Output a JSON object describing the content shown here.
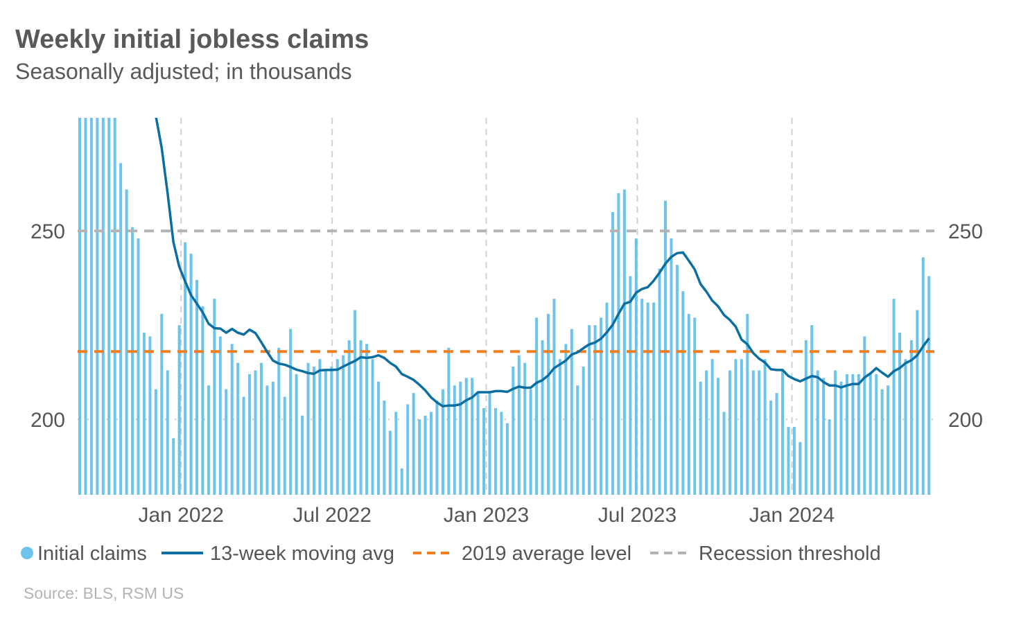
{
  "chart_data": {
    "type": "bar",
    "title": "Weekly initial jobless claims",
    "subtitle": "Seasonally adjusted; in thousands",
    "source": "Source: BLS, RSM US",
    "xlabel": "",
    "ylabel": "",
    "ylim": [
      180,
      280
    ],
    "yticks": [
      200,
      250
    ],
    "ytick_labels": [
      "200",
      "250"
    ],
    "xticks": [
      {
        "label": "Jan 2022",
        "week_index": 18.3
      },
      {
        "label": "Jul 2022",
        "week_index": 44.1
      },
      {
        "label": "Jan 2023",
        "week_index": 70.4
      },
      {
        "label": "Jul 2023",
        "week_index": 96.2
      },
      {
        "label": "Jan 2024",
        "week_index": 122.6
      }
    ],
    "reference_lines": [
      {
        "name": "2019 average level",
        "value": 218,
        "color": "#f07f21",
        "style": "dashed"
      },
      {
        "name": "Recession threshold",
        "value": 250,
        "color": "#b3b3b3",
        "style": "dashed"
      }
    ],
    "series": [
      {
        "name": "Initial claims",
        "type": "bar",
        "color": "#6cc4ec",
        "values": [
          280,
          280,
          280,
          280,
          280,
          280,
          280,
          268,
          261,
          251,
          248,
          223,
          222,
          208,
          228,
          213,
          195,
          225,
          247,
          244,
          237,
          230,
          209,
          232,
          222,
          208,
          220,
          215,
          206,
          212,
          213,
          215,
          209,
          210,
          219,
          206,
          224,
          212,
          201,
          215,
          214,
          216,
          213,
          214,
          216,
          217,
          221,
          229,
          221,
          220,
          216,
          210,
          205,
          197,
          202,
          187,
          204,
          207,
          200,
          201,
          202,
          205,
          208,
          219,
          209,
          210,
          211,
          211,
          207,
          203,
          207,
          203,
          202,
          199,
          214,
          217,
          215,
          208,
          227,
          221,
          228,
          232,
          216,
          220,
          224,
          209,
          214,
          225,
          225,
          227,
          231,
          255,
          260,
          261,
          238,
          248,
          232,
          231,
          231,
          240,
          258,
          248,
          241,
          234,
          228,
          227,
          210,
          213,
          216,
          211,
          202,
          213,
          216,
          216,
          228,
          213,
          213,
          216,
          205,
          207,
          213,
          198,
          198,
          194,
          221,
          225,
          213,
          211,
          200,
          213,
          210,
          212,
          212,
          212,
          222,
          212,
          212,
          208,
          209,
          232,
          223,
          216,
          221,
          229,
          243,
          238
        ]
      },
      {
        "name": "13-week moving avg",
        "type": "line",
        "color": "#0a6fa0",
        "values": [
          null,
          null,
          null,
          null,
          null,
          null,
          null,
          null,
          null,
          null,
          null,
          null,
          null,
          280.5,
          272,
          260,
          247,
          240.5,
          236.6,
          233,
          230.7,
          228.4,
          225.4,
          224.2,
          224.1,
          223,
          224,
          223,
          222.5,
          223.8,
          222.9,
          220.5,
          217.9,
          215.6,
          214.8,
          214.5,
          213.9,
          213.2,
          212.8,
          212.3,
          212.1,
          213,
          213.1,
          213.1,
          213.2,
          214,
          214.8,
          215.5,
          216.5,
          216.3,
          216.5,
          217,
          216.3,
          215,
          214,
          212,
          211.3,
          210.5,
          209.2,
          207.7,
          205.8,
          204.5,
          203.5,
          203.7,
          203.7,
          204,
          205.1,
          205.8,
          207.2,
          207.2,
          207.2,
          207.5,
          207.5,
          207.3,
          208.1,
          208.7,
          208.4,
          208.4,
          209.7,
          210.4,
          211.7,
          213.6,
          214.6,
          215.6,
          217.2,
          217.8,
          218.9,
          219.9,
          220.4,
          221.4,
          223.1,
          225.1,
          228,
          230.7,
          231.2,
          233.6,
          234.6,
          235.1,
          236.8,
          238.9,
          241.3,
          243.1,
          244.1,
          244.3,
          242.1,
          239.8,
          235.9,
          233.9,
          231.5,
          230,
          227.7,
          226.4,
          224.6,
          221.2,
          219.9,
          217.6,
          216.1,
          215.1,
          213.3,
          213.1,
          213.1,
          211.5,
          210.7,
          210.1,
          210.8,
          211.5,
          211.2,
          209.9,
          209,
          209,
          208.5,
          209,
          209.4,
          209.4,
          211.1,
          212.2,
          213.6,
          212.4,
          211.3,
          212.8,
          213.6,
          214.9,
          215.7,
          217,
          219.4,
          221.5
        ]
      }
    ],
    "legend": {
      "placement": "bottom",
      "entries": [
        "Initial claims",
        "13-week moving avg",
        "2019 average level",
        "Recession threshold"
      ]
    },
    "grid": {
      "vertical": true,
      "horizontal_dotted_at": [
        200
      ]
    }
  }
}
